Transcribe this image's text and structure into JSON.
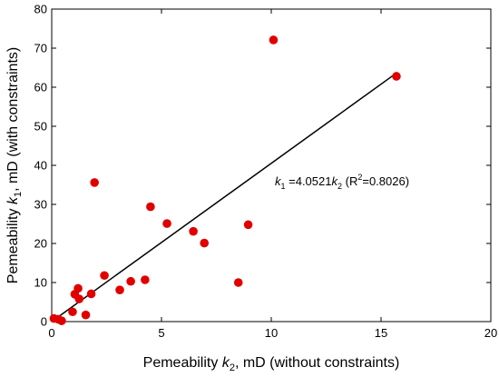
{
  "chart_data": {
    "type": "scatter",
    "title": "",
    "xlabel": {
      "prefix": "Pemeability ",
      "sym": "k",
      "sub": "2",
      "suffix": ", mD (without constraints)"
    },
    "ylabel": {
      "prefix": "Pemeability ",
      "sym": "k",
      "sub": "1",
      "suffix": ", mD (with constraints)"
    },
    "xlim": [
      0,
      20
    ],
    "ylim": [
      0,
      80
    ],
    "xticks": [
      0,
      5,
      10,
      15,
      20
    ],
    "yticks": [
      0,
      10,
      20,
      30,
      40,
      50,
      60,
      70,
      80
    ],
    "grid": false,
    "series": [
      {
        "marker_color": "#e00000",
        "points": [
          {
            "x": 0.1,
            "y": 0.8
          },
          {
            "x": 0.3,
            "y": 0.6
          },
          {
            "x": 0.45,
            "y": 0.2
          },
          {
            "x": 0.95,
            "y": 2.5
          },
          {
            "x": 1.05,
            "y": 7.0
          },
          {
            "x": 1.2,
            "y": 8.5
          },
          {
            "x": 1.25,
            "y": 5.8
          },
          {
            "x": 1.55,
            "y": 1.7
          },
          {
            "x": 1.8,
            "y": 7.1
          },
          {
            "x": 1.95,
            "y": 35.6
          },
          {
            "x": 2.4,
            "y": 11.8
          },
          {
            "x": 3.1,
            "y": 8.1
          },
          {
            "x": 3.6,
            "y": 10.3
          },
          {
            "x": 4.25,
            "y": 10.7
          },
          {
            "x": 4.5,
            "y": 29.4
          },
          {
            "x": 5.25,
            "y": 25.1
          },
          {
            "x": 6.45,
            "y": 23.1
          },
          {
            "x": 6.95,
            "y": 20.1
          },
          {
            "x": 8.5,
            "y": 10.0
          },
          {
            "x": 8.95,
            "y": 24.8
          },
          {
            "x": 10.1,
            "y": 72.1
          },
          {
            "x": 15.7,
            "y": 62.8
          }
        ]
      }
    ],
    "fit_line": {
      "slope": 4.0521,
      "x_range": [
        0,
        15.7
      ],
      "color": "#000000"
    },
    "annotation": {
      "lhs_sym": "k",
      "lhs_sub": "1",
      "eq": " =4.0521",
      "rhs_sym": "k",
      "rhs_sub": "2",
      "r2_open": " (R",
      "r2_sup": "2",
      "r2_close": "=0.8026)"
    }
  }
}
